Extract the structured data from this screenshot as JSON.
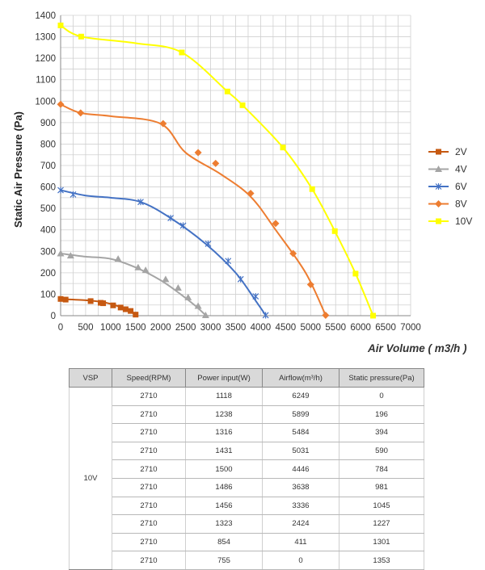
{
  "chart_data": {
    "type": "line",
    "title": "",
    "xlabel": "Air Volume ( m3/h )",
    "ylabel": "Static Air Pressure  (Pa)",
    "xlim": [
      0,
      7000
    ],
    "ylim": [
      0,
      1400
    ],
    "x_ticks": [
      "0",
      "500",
      "1000",
      "1500",
      "2000",
      "2500",
      "3000",
      "3500",
      "4000",
      "4500",
      "5000",
      "5500",
      "6000",
      "6500",
      "7000"
    ],
    "y_ticks": [
      "0",
      "100",
      "200",
      "300",
      "400",
      "500",
      "600",
      "700",
      "800",
      "900",
      "1000",
      "1100",
      "1200",
      "1300",
      "1400"
    ],
    "grid": true,
    "legend_position": "right",
    "series": [
      {
        "name": "2V",
        "color": "#c65911",
        "marker": "square",
        "curve": [
          [
            0,
            78
          ],
          [
            500,
            72
          ],
          [
            800,
            65
          ],
          [
            1000,
            55
          ],
          [
            1200,
            40
          ],
          [
            1400,
            18
          ],
          [
            1500,
            2
          ]
        ],
        "points": [
          [
            0,
            78
          ],
          [
            100,
            75
          ],
          [
            600,
            68
          ],
          [
            800,
            60
          ],
          [
            850,
            58
          ],
          [
            1050,
            48
          ],
          [
            1200,
            38
          ],
          [
            1300,
            30
          ],
          [
            1400,
            22
          ],
          [
            1500,
            5
          ]
        ]
      },
      {
        "name": "4V",
        "color": "#a5a5a5",
        "marker": "triangle",
        "curve": [
          [
            0,
            290
          ],
          [
            500,
            275
          ],
          [
            1000,
            265
          ],
          [
            1500,
            225
          ],
          [
            2000,
            165
          ],
          [
            2400,
            100
          ],
          [
            2700,
            45
          ],
          [
            2900,
            2
          ]
        ],
        "points": [
          [
            0,
            290
          ],
          [
            200,
            280
          ],
          [
            1150,
            265
          ],
          [
            1550,
            225
          ],
          [
            1700,
            212
          ],
          [
            2100,
            170
          ],
          [
            2350,
            130
          ],
          [
            2550,
            85
          ],
          [
            2750,
            45
          ],
          [
            2900,
            2
          ]
        ]
      },
      {
        "name": "6V",
        "color": "#4472c4",
        "marker": "x",
        "curve": [
          [
            0,
            585
          ],
          [
            500,
            560
          ],
          [
            1000,
            550
          ],
          [
            1600,
            530
          ],
          [
            2200,
            455
          ],
          [
            2900,
            335
          ],
          [
            3500,
            200
          ],
          [
            3900,
            70
          ],
          [
            4100,
            2
          ]
        ],
        "points": [
          [
            0,
            585
          ],
          [
            250,
            565
          ],
          [
            1600,
            530
          ],
          [
            2200,
            455
          ],
          [
            2450,
            420
          ],
          [
            2950,
            335
          ],
          [
            3350,
            255
          ],
          [
            3600,
            170
          ],
          [
            3900,
            90
          ],
          [
            4100,
            2
          ]
        ]
      },
      {
        "name": "8V",
        "color": "#ed7d31",
        "marker": "diamond",
        "curve": [
          [
            0,
            985
          ],
          [
            400,
            945
          ],
          [
            1000,
            930
          ],
          [
            2000,
            895
          ],
          [
            2500,
            760
          ],
          [
            3200,
            660
          ],
          [
            3800,
            555
          ],
          [
            4300,
            400
          ],
          [
            4900,
            200
          ],
          [
            5300,
            2
          ]
        ],
        "points": [
          [
            0,
            985
          ],
          [
            400,
            945
          ],
          [
            2050,
            895
          ],
          [
            2750,
            760
          ],
          [
            3100,
            710
          ],
          [
            3800,
            570
          ],
          [
            4300,
            430
          ],
          [
            4650,
            290
          ],
          [
            5000,
            145
          ],
          [
            5300,
            2
          ]
        ]
      },
      {
        "name": "10V",
        "color": "#ffff00",
        "marker": "square",
        "curve": [
          [
            0,
            1353
          ],
          [
            411,
            1301
          ],
          [
            1500,
            1270
          ],
          [
            2424,
            1227
          ],
          [
            3336,
            1045
          ],
          [
            3638,
            981
          ],
          [
            4446,
            784
          ],
          [
            5031,
            590
          ],
          [
            5484,
            394
          ],
          [
            5899,
            196
          ],
          [
            6249,
            0
          ]
        ],
        "points": [
          [
            0,
            1353
          ],
          [
            411,
            1301
          ],
          [
            2424,
            1227
          ],
          [
            3336,
            1045
          ],
          [
            3638,
            981
          ],
          [
            4446,
            784
          ],
          [
            5031,
            590
          ],
          [
            5484,
            394
          ],
          [
            5899,
            196
          ],
          [
            6249,
            0
          ]
        ]
      }
    ]
  },
  "table": {
    "headers": [
      "VSP",
      "Speed(RPM)",
      "Power input(W)",
      "Airflow(m³/h)",
      "Static pressure(Pa)"
    ],
    "vsp": "10V",
    "rows": [
      [
        "2710",
        "1118",
        "6249",
        "0"
      ],
      [
        "2710",
        "1238",
        "5899",
        "196"
      ],
      [
        "2710",
        "1316",
        "5484",
        "394"
      ],
      [
        "2710",
        "1431",
        "5031",
        "590"
      ],
      [
        "2710",
        "1500",
        "4446",
        "784"
      ],
      [
        "2710",
        "1486",
        "3638",
        "981"
      ],
      [
        "2710",
        "1456",
        "3336",
        "1045"
      ],
      [
        "2710",
        "1323",
        "2424",
        "1227"
      ],
      [
        "2710",
        "854",
        "411",
        "1301"
      ],
      [
        "2710",
        "755",
        "0",
        "1353"
      ]
    ]
  }
}
